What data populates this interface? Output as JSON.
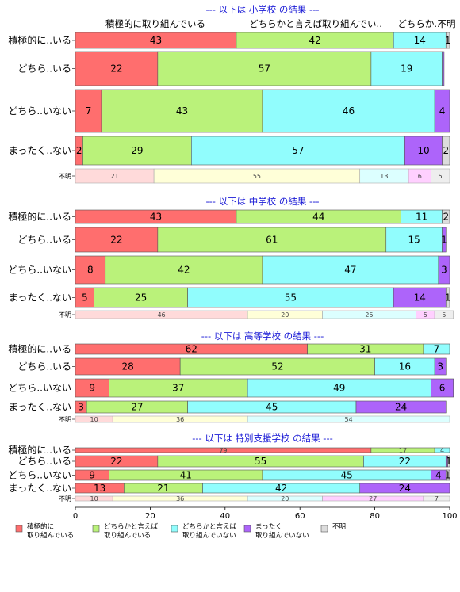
{
  "chart_data": {
    "type": "bar",
    "orientation": "horizontal",
    "stacked": "percent",
    "xlim": [
      0,
      100
    ],
    "xticks": [
      "0",
      "20",
      "40",
      "60",
      "80",
      "100"
    ],
    "column_headers": [
      "積極的に取り組んでいる",
      "どちらかと言えば取り組んでい..",
      "どちらか..",
      "不明"
    ],
    "category_colors": {
      "積極的に取り組んでいる": "#ff6e6e",
      "どちらかと言えば取り組んでいる": "#baf27a",
      "どちらかと言えば取り組んでいない": "#91fdfd",
      "まったく取り組んでいない": "#ad64fa",
      "不明": "#dcdcdc"
    },
    "legend": [
      {
        "label": "積極的に\n取り組んでいる",
        "color": "#ff6e6e"
      },
      {
        "label": "どちらかと言えば\n取り組んでいる",
        "color": "#baf27a"
      },
      {
        "label": "どちらかと言えば\n取り組んでいない",
        "color": "#91fdfd"
      },
      {
        "label": "まったく\n取り組んでいない",
        "color": "#ad64fa"
      },
      {
        "label": "不明",
        "color": "#dcdcdc"
      }
    ],
    "sections": [
      {
        "title": "--- 以下は 小学校 の結果 ---",
        "rows": [
          {
            "label": "積極的に..いる",
            "values": [
              43,
              42,
              14,
              0,
              1
            ],
            "labels": [
              "43",
              "42",
              "14",
              "",
              "1"
            ]
          },
          {
            "label": "どちら..いる",
            "values": [
              22,
              57,
              19,
              0.5,
              0
            ],
            "labels": [
              "22",
              "57",
              "19",
              "",
              ""
            ]
          },
          {
            "label": "どちら..いない",
            "values": [
              7,
              43,
              46,
              4,
              0
            ],
            "labels": [
              "7",
              "43",
              "46",
              "4",
              ""
            ]
          },
          {
            "label": "まったく..ない",
            "values": [
              2,
              29,
              57,
              10,
              2
            ],
            "labels": [
              "2",
              "29",
              "57",
              "10",
              "2"
            ]
          },
          {
            "label": "不明",
            "values": [
              21,
              55,
              13,
              6,
              5
            ],
            "labels": [
              "21",
              "55",
              "13",
              "6",
              "5"
            ],
            "unknown": true
          }
        ]
      },
      {
        "title": "--- 以下は 中学校 の結果 ---",
        "rows": [
          {
            "label": "積極的に..いる",
            "values": [
              43,
              44,
              11,
              0,
              2
            ],
            "labels": [
              "43",
              "44",
              "11",
              "",
              "2"
            ]
          },
          {
            "label": "どちら..いる",
            "values": [
              22,
              61,
              15,
              1,
              0
            ],
            "labels": [
              "22",
              "61",
              "15",
              "1",
              ""
            ]
          },
          {
            "label": "どちら..いない",
            "values": [
              8,
              42,
              47,
              3,
              0
            ],
            "labels": [
              "8",
              "42",
              "47",
              "3",
              ""
            ]
          },
          {
            "label": "まったく..ない",
            "values": [
              5,
              25,
              55,
              14,
              1
            ],
            "labels": [
              "5",
              "25",
              "55",
              "14",
              "1"
            ]
          },
          {
            "label": "不明",
            "values": [
              46,
              20,
              25,
              5,
              5
            ],
            "labels": [
              "46",
              "20",
              "25",
              "5",
              "5"
            ],
            "unknown": true
          }
        ]
      },
      {
        "title": "--- 以下は 高等学校 の結果 ---",
        "rows": [
          {
            "label": "積極的に..いる",
            "values": [
              62,
              31,
              7,
              0,
              0
            ],
            "labels": [
              "62",
              "31",
              "7",
              "",
              ""
            ]
          },
          {
            "label": "どちら..いる",
            "values": [
              28,
              52,
              16,
              3,
              0
            ],
            "labels": [
              "28",
              "52",
              "16",
              "3",
              ""
            ]
          },
          {
            "label": "どちら..いない",
            "values": [
              9,
              37,
              49,
              6,
              0
            ],
            "labels": [
              "9",
              "37",
              "49",
              "6",
              ""
            ]
          },
          {
            "label": "まったく..ない",
            "values": [
              3,
              27,
              45,
              24,
              0
            ],
            "labels": [
              "3",
              "27",
              "45",
              "24",
              ""
            ]
          },
          {
            "label": "不明",
            "values": [
              10,
              36,
              54,
              0,
              0
            ],
            "labels": [
              "10",
              "36",
              "54",
              "",
              ""
            ],
            "unknown": true
          }
        ]
      },
      {
        "title": "--- 以下は 特別支援学校 の結果 ---",
        "rows": [
          {
            "label": "積極的に..いる",
            "values": [
              79,
              17,
              4,
              0,
              0
            ],
            "labels": [
              "79",
              "17",
              "4",
              "",
              ""
            ]
          },
          {
            "label": "どちら..いる",
            "values": [
              22,
              55,
              22,
              0.5,
              0.5
            ],
            "labels": [
              "22",
              "55",
              "22",
              "",
              "1"
            ]
          },
          {
            "label": "どちら..いない",
            "values": [
              9,
              41,
              45,
              4,
              1
            ],
            "labels": [
              "9",
              "41",
              "45",
              "4",
              "1"
            ]
          },
          {
            "label": "まったく..ない",
            "values": [
              13,
              21,
              42,
              24,
              0
            ],
            "labels": [
              "13",
              "21",
              "42",
              "24",
              ""
            ]
          },
          {
            "label": "不明",
            "values": [
              10,
              36,
              20,
              27,
              7
            ],
            "labels": [
              "10",
              "36",
              "20",
              "27",
              "7"
            ],
            "unknown": true
          }
        ]
      }
    ]
  }
}
